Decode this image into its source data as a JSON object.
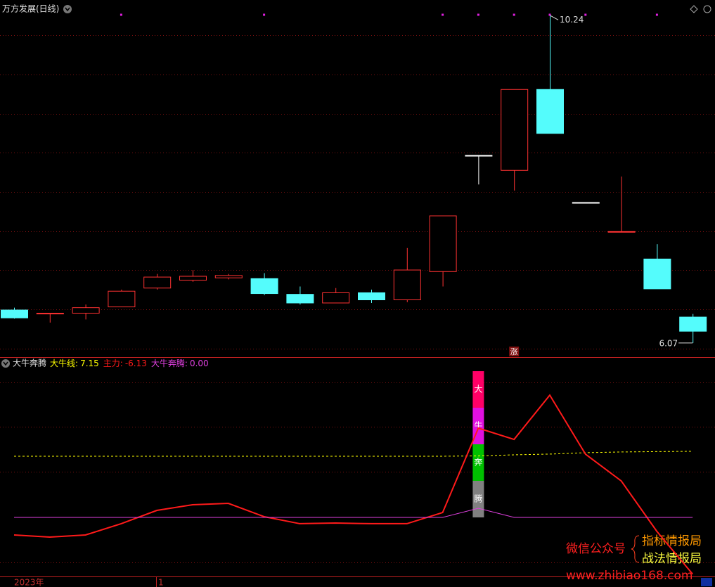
{
  "chart_data": [
    {
      "type": "candlestick",
      "title": "万方发展(日线)",
      "open": [
        6.49,
        6.44,
        6.45,
        6.53,
        6.77,
        6.87,
        6.9,
        6.89,
        6.69,
        6.58,
        6.71,
        6.62,
        6.98,
        8.46,
        8.27,
        9.3,
        7.86,
        7.49,
        7.14,
        6.4
      ],
      "high": [
        6.52,
        6.45,
        6.56,
        6.75,
        6.95,
        7.0,
        6.95,
        6.96,
        6.79,
        6.77,
        6.75,
        7.28,
        7.69,
        8.46,
        9.3,
        10.24,
        7.86,
        8.19,
        7.33,
        6.44
      ],
      "low": [
        6.38,
        6.33,
        6.37,
        6.53,
        6.75,
        6.85,
        6.88,
        6.68,
        6.56,
        6.58,
        6.58,
        6.59,
        6.79,
        8.09,
        8.01,
        8.74,
        7.86,
        7.49,
        6.76,
        6.07
      ],
      "close": [
        6.39,
        6.45,
        6.52,
        6.73,
        6.91,
        6.92,
        6.93,
        6.7,
        6.58,
        6.71,
        6.62,
        7.0,
        7.69,
        8.46,
        9.3,
        8.74,
        7.86,
        7.49,
        6.76,
        6.22
      ],
      "colors": [
        "#54fcfc",
        "#ff3232",
        "#ff3232",
        "#ff3232",
        "#ff3232",
        "#ff3232",
        "#ff3232",
        "#54fcfc",
        "#54fcfc",
        "#ff3232",
        "#54fcfc",
        "#ff3232",
        "#ff3232",
        "#ffffff",
        "#ff3232",
        "#54fcfc",
        "#ffffff",
        "#ff3232",
        "#54fcfc",
        "#54fcfc"
      ],
      "ylim": [
        5.89,
        10.44
      ],
      "signal_tag": "涨"
    },
    {
      "type": "line",
      "title": "大牛奔腾",
      "series": [
        {
          "name": "大牛线",
          "color": "#ffff00",
          "dashed": true,
          "legend_value": "7.15",
          "values": [
            6.62,
            6.62,
            6.62,
            6.62,
            6.62,
            6.62,
            6.62,
            6.62,
            6.62,
            6.62,
            6.62,
            6.62,
            6.62,
            6.65,
            6.77,
            6.85,
            7.0,
            7.08,
            7.12,
            7.15
          ]
        },
        {
          "name": "主力",
          "color": "#ff1a1a",
          "dashed": false,
          "legend_value": "-6.13",
          "values": [
            -1.9,
            -2.13,
            -1.9,
            -0.68,
            0.76,
            1.37,
            1.52,
            0.08,
            -0.68,
            -0.61,
            -0.68,
            -0.68,
            0.53,
            9.66,
            8.44,
            13.23,
            6.84,
            3.95,
            -1.52,
            -6.13
          ]
        },
        {
          "name": "大牛奔腾",
          "color": "#e040e0",
          "dashed": false,
          "legend_value": "0.00",
          "values": [
            0,
            0,
            0,
            0,
            0,
            0,
            0,
            0,
            0,
            0,
            0,
            0,
            0,
            0.99,
            0,
            0,
            0,
            0,
            0,
            0
          ]
        }
      ],
      "ylim": [
        -6.39,
        17.19
      ],
      "banner": [
        "大",
        "牛",
        "奔",
        "腾"
      ],
      "banner_colors": [
        "#ff0066",
        "#e010e0",
        "#00c000",
        "#808080"
      ]
    }
  ],
  "x_axis_labels": [
    "2023年",
    "1"
  ],
  "watermark": {
    "account_label": "微信公众号",
    "line1": "指标情报局",
    "line2": "战法情报局",
    "url": "www.zhibiao168.com"
  }
}
